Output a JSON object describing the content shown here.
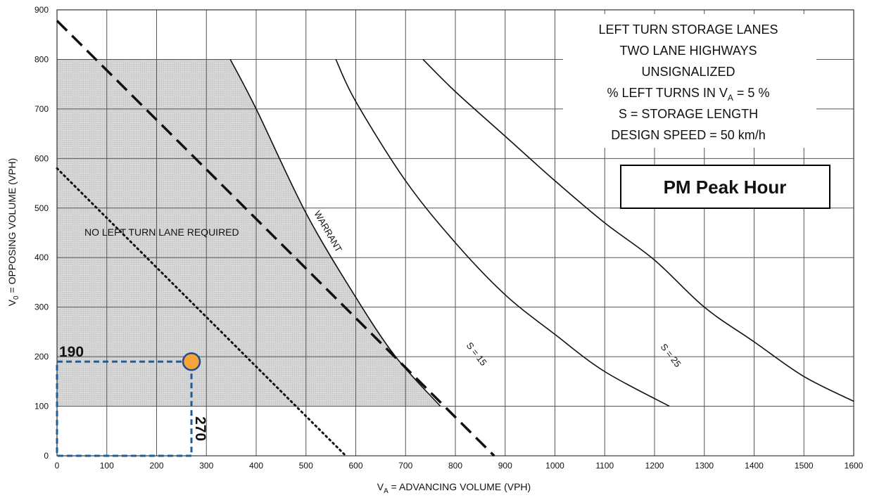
{
  "chart_data": {
    "type": "line",
    "title_lines": [
      "LEFT TURN STORAGE LANES",
      "TWO LANE HIGHWAYS",
      "UNSIGNALIZED",
      "% LEFT TURNS IN V_A = 5 %",
      "S = STORAGE LENGTH",
      "DESIGN SPEED = 50 km/h"
    ],
    "title_rich": {
      "line4_pre": "% LEFT TURNS IN V",
      "line4_sub": "A",
      "line4_post": " = 5 %"
    },
    "badge": "PM Peak Hour",
    "xlabel": "V_A = ADVANCING VOLUME (VPH)",
    "xlabel_rich": {
      "pre": "V",
      "sub": "A",
      "post": " = ADVANCING VOLUME (VPH)"
    },
    "ylabel": "V_0 = OPPOSING VOLUME (VPH)",
    "ylabel_rich": {
      "pre": "V",
      "sub": "0",
      "post": " = OPPOSING VOLUME (VPH)"
    },
    "xlim": [
      0,
      1600
    ],
    "ylim": [
      0,
      900
    ],
    "xticks": [
      0,
      100,
      200,
      300,
      400,
      500,
      600,
      700,
      800,
      900,
      1000,
      1100,
      1200,
      1300,
      1400,
      1500,
      1600
    ],
    "yticks": [
      0,
      100,
      200,
      300,
      400,
      500,
      600,
      700,
      800,
      900
    ],
    "grid": true,
    "region": {
      "label": "NO LEFT TURN LANE REQUIRED",
      "polygon": [
        [
          0,
          100
        ],
        [
          0,
          800
        ],
        [
          348,
          800
        ],
        [
          400,
          700
        ],
        [
          500,
          490
        ],
        [
          600,
          320
        ],
        [
          680,
          200
        ],
        [
          770,
          100
        ]
      ]
    },
    "series": [
      {
        "name": "WARRANT",
        "style": "solid",
        "points": [
          [
            348,
            800
          ],
          [
            400,
            700
          ],
          [
            500,
            490
          ],
          [
            600,
            320
          ],
          [
            680,
            200
          ],
          [
            770,
            100
          ]
        ]
      },
      {
        "name": "",
        "style": "dashed",
        "points": [
          [
            0,
            878
          ],
          [
            878,
            0
          ]
        ]
      },
      {
        "name": "",
        "style": "dotted",
        "points": [
          [
            0,
            580
          ],
          [
            580,
            0
          ]
        ]
      },
      {
        "name": "S = 15",
        "style": "solid",
        "points": [
          [
            560,
            800
          ],
          [
            600,
            715
          ],
          [
            700,
            555
          ],
          [
            800,
            430
          ],
          [
            900,
            325
          ],
          [
            1000,
            245
          ],
          [
            1100,
            170
          ],
          [
            1230,
            100
          ]
        ]
      },
      {
        "name": "S = 25",
        "style": "solid",
        "points": [
          [
            735,
            800
          ],
          [
            800,
            735
          ],
          [
            900,
            645
          ],
          [
            1000,
            555
          ],
          [
            1100,
            470
          ],
          [
            1200,
            395
          ],
          [
            1300,
            300
          ],
          [
            1400,
            230
          ],
          [
            1500,
            160
          ],
          [
            1600,
            110
          ]
        ]
      }
    ],
    "marker": {
      "x": 270,
      "y": 190,
      "color": "#F5A33A",
      "stroke": "#1F4E8C"
    },
    "callout_x_label": "270",
    "callout_y_label": "190",
    "guide_color": "#1F5C99",
    "shade_color": "#D6D6D6"
  }
}
